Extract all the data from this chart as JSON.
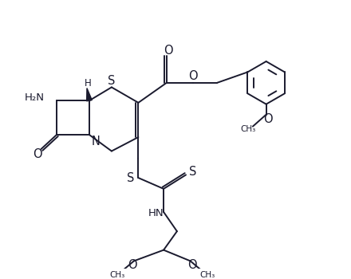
{
  "bg": "#ffffff",
  "lc": "#1a1a2e",
  "lw": 1.4,
  "fs": 9.5,
  "figsize": [
    4.4,
    3.5
  ],
  "dpi": 100,
  "xlim": [
    0.2,
    10.8
  ],
  "ylim": [
    -0.8,
    8.2
  ]
}
